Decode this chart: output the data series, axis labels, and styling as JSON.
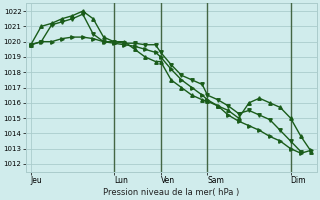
{
  "title": "Pression niveau de la mer( hPa )",
  "bg_color": "#d0ecec",
  "grid_color": "#aacccc",
  "line_color": "#1a5c1a",
  "ylim": [
    1011.5,
    1022.5
  ],
  "yticks": [
    1012,
    1013,
    1014,
    1015,
    1016,
    1017,
    1018,
    1019,
    1020,
    1021,
    1022
  ],
  "xlim": [
    0,
    28
  ],
  "day_labels": [
    "Jeu",
    "Lun",
    "Ven",
    "Sam",
    "Dim"
  ],
  "day_positions": [
    0.5,
    8.5,
    13,
    17.5,
    25.5
  ],
  "vline_positions": [
    8.5,
    13.0,
    17.5,
    25.5
  ],
  "vline_color": "#446644",
  "line1_x": [
    0.5,
    1.5,
    2.5,
    3.5,
    4.5,
    5.5,
    6.5,
    7.5,
    8.5,
    9.5,
    10.5,
    11.5,
    12.5,
    13.0,
    14.0,
    15.0,
    16.0,
    17.0,
    17.5,
    18.5,
    19.5,
    20.5,
    21.5,
    22.5,
    23.5,
    24.5,
    25.5,
    26.5
  ],
  "line1_y": [
    1019.8,
    1020.0,
    1021.1,
    1021.3,
    1021.5,
    1021.8,
    1020.5,
    1020.0,
    1020.0,
    1019.9,
    1019.9,
    1019.8,
    1019.8,
    1019.3,
    1018.5,
    1017.8,
    1017.5,
    1017.2,
    1016.5,
    1016.2,
    1015.8,
    1015.3,
    1015.5,
    1015.2,
    1014.9,
    1014.2,
    1013.5,
    1012.8
  ],
  "line2_x": [
    0.5,
    1.5,
    2.5,
    3.5,
    4.5,
    5.5,
    6.5,
    7.5,
    8.5,
    9.5,
    10.5,
    11.5,
    12.5,
    13.0,
    14.0,
    15.0,
    16.0,
    17.0,
    17.5,
    18.5,
    19.5,
    20.5,
    21.5,
    22.5,
    23.5,
    24.5,
    25.5,
    26.5,
    27.5
  ],
  "line2_y": [
    1019.8,
    1021.0,
    1021.2,
    1021.5,
    1021.7,
    1022.0,
    1021.5,
    1020.3,
    1020.0,
    1020.0,
    1019.5,
    1019.0,
    1018.7,
    1018.7,
    1017.5,
    1017.0,
    1016.5,
    1016.2,
    1016.1,
    1015.8,
    1015.5,
    1015.0,
    1016.0,
    1016.3,
    1016.0,
    1015.7,
    1015.0,
    1013.8,
    1012.8
  ],
  "line3_x": [
    0.5,
    1.5,
    2.5,
    3.5,
    4.5,
    5.5,
    6.5,
    7.5,
    8.5,
    9.5,
    10.5,
    11.5,
    12.5,
    13.0,
    14.0,
    15.0,
    16.0,
    17.0,
    17.5,
    18.5,
    19.5,
    20.5,
    21.5,
    22.5,
    23.5,
    24.5,
    25.5,
    26.5,
    27.5
  ],
  "line3_y": [
    1019.8,
    1020.0,
    1020.0,
    1020.2,
    1020.3,
    1020.3,
    1020.2,
    1020.0,
    1019.9,
    1019.8,
    1019.7,
    1019.5,
    1019.3,
    1019.0,
    1018.2,
    1017.5,
    1017.0,
    1016.5,
    1016.2,
    1015.8,
    1015.2,
    1014.8,
    1014.5,
    1014.2,
    1013.8,
    1013.5,
    1013.0,
    1012.7,
    1012.9
  ]
}
